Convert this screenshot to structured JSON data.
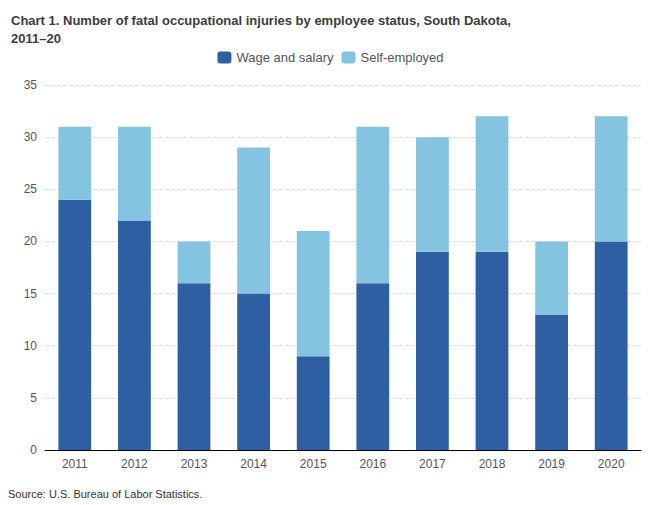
{
  "chart_data": {
    "type": "bar",
    "title": "Chart 1. Number of fatal occupational injuries by employee status, South Dakota,\n2011–20",
    "annotations": [
      "Source: U.S. Bureau of Labor Statistics."
    ],
    "categories": [
      "2011",
      "2012",
      "2013",
      "2014",
      "2015",
      "2016",
      "2017",
      "2018",
      "2019",
      "2020"
    ],
    "series": [
      {
        "name": "Wage and salary",
        "color": "#2E5FA3",
        "values": [
          24,
          22,
          16,
          15,
          9,
          16,
          19,
          19,
          13,
          20
        ]
      },
      {
        "name": "Self-employed",
        "color": "#85C4E0",
        "values": [
          7,
          9,
          4,
          14,
          12,
          15,
          11,
          13,
          7,
          12
        ]
      }
    ],
    "stacked": true,
    "ylim": [
      0,
      35
    ],
    "yticks": [
      0,
      5,
      10,
      15,
      20,
      25,
      30,
      35
    ],
    "grid": true,
    "legend": "top"
  }
}
